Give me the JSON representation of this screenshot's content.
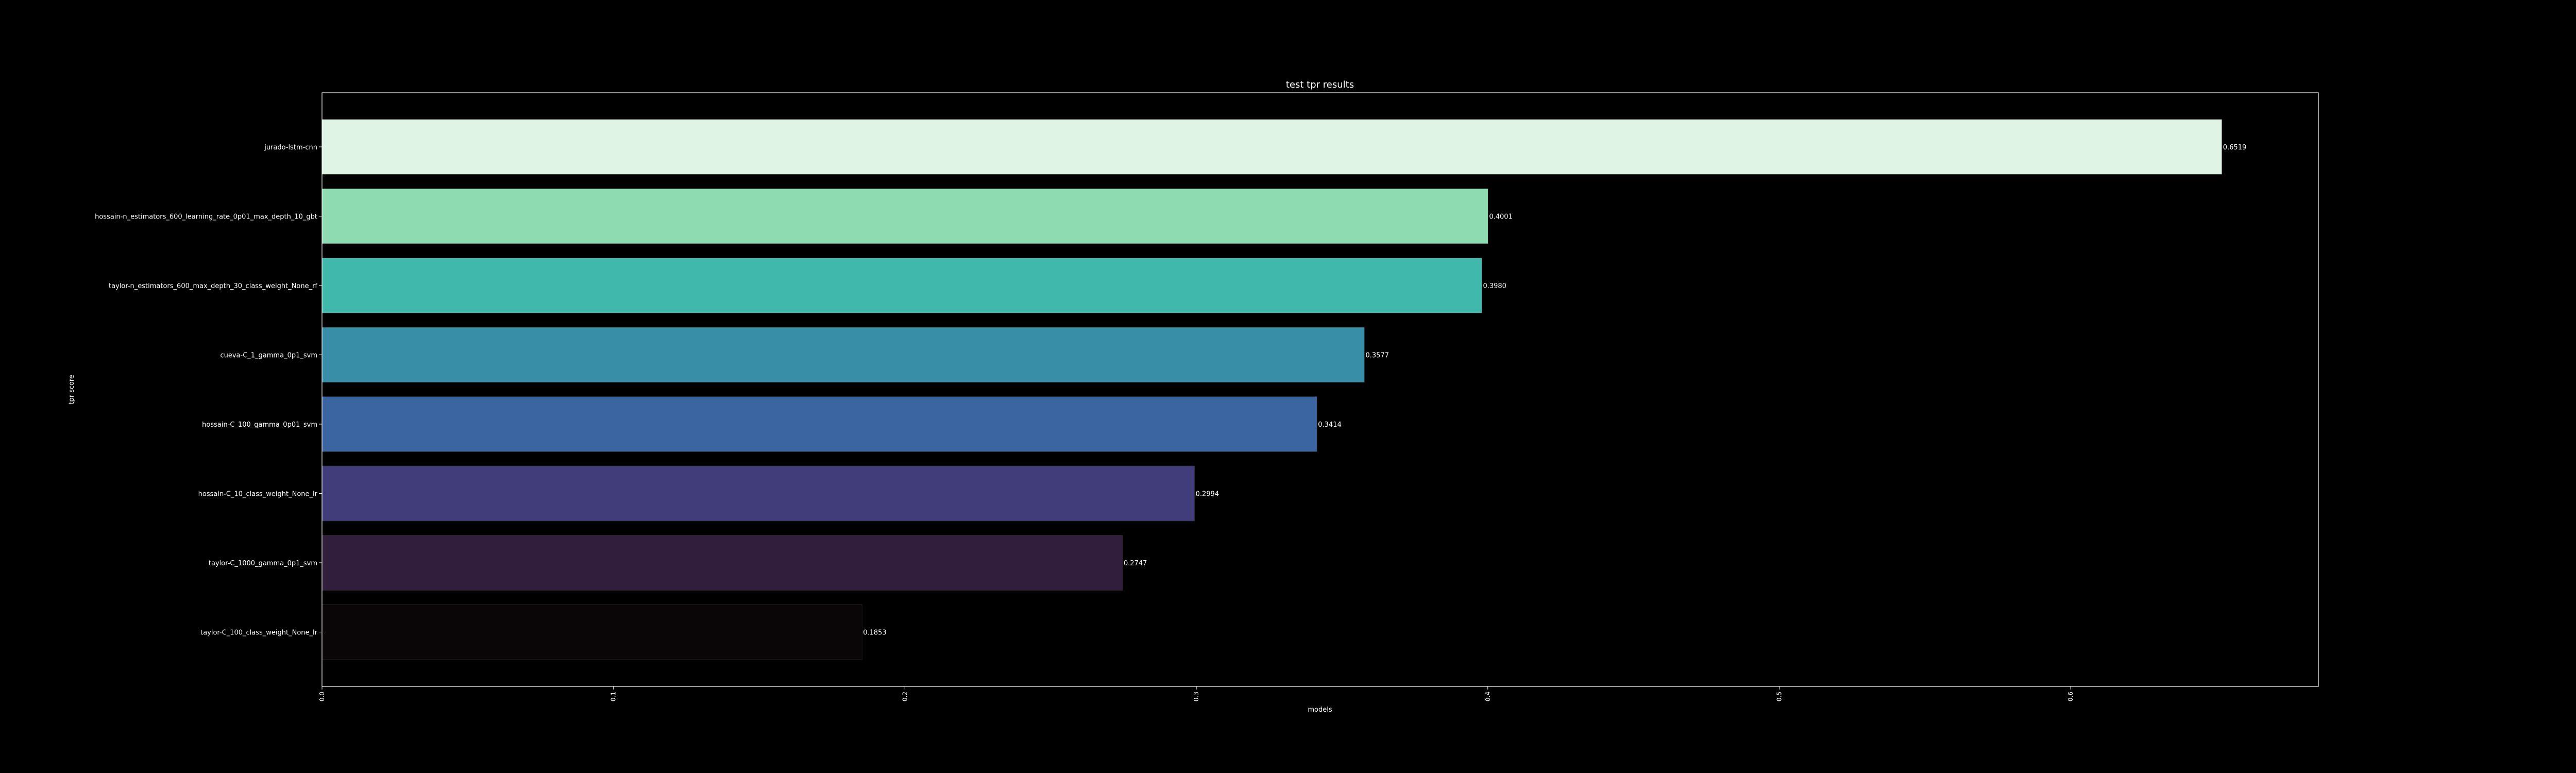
{
  "chart_data": {
    "type": "bar",
    "orientation": "horizontal",
    "title": "test tpr  results",
    "xlabel": "models",
    "ylabel": "tpr score",
    "xlim": [
      0,
      0.685
    ],
    "xticks": [
      0.0,
      0.1,
      0.2,
      0.3,
      0.4,
      0.5,
      0.6
    ],
    "grid": false,
    "categories": [
      "jurado-lstm-cnn",
      "hossain-n_estimators_600_learning_rate_0p01_max_depth_10_gbt",
      "taylor-n_estimators_600_max_depth_30_class_weight_None_rf",
      "cueva-C_1_gamma_0p1_svm",
      "hossain-C_100_gamma_0p01_svm",
      "hossain-C_10_class_weight_None_lr",
      "taylor-C_1000_gamma_0p1_svm",
      "taylor-C_100_class_weight_None_lr"
    ],
    "values": [
      0.6519,
      0.4001,
      0.398,
      0.3577,
      0.3414,
      0.2994,
      0.2747,
      0.1853
    ],
    "value_labels": [
      "0.6519",
      "0.4001",
      "0.3980",
      "0.3577",
      "0.3414",
      "0.2994",
      "0.2747",
      "0.1853"
    ],
    "colors": [
      "#dff4e5",
      "#8fdbb1",
      "#41b8ac",
      "#378ea6",
      "#3a65a0",
      "#413d7b",
      "#311e3c",
      "#0a0506"
    ]
  }
}
